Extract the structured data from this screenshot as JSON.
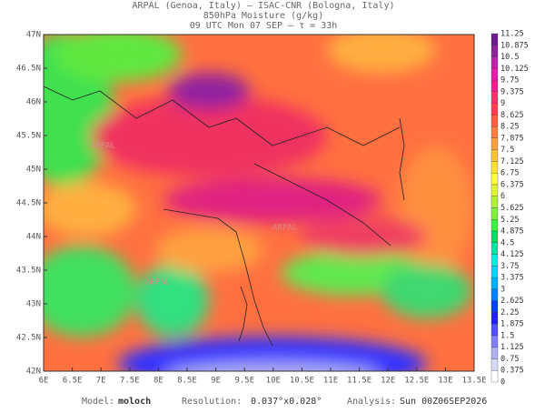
{
  "header": {
    "line1": "ARPAL (Genoa, Italy)  —  ISAC-CNR (Bologna, Italy)",
    "line2": "850hPa Moisture (g/kg)",
    "line3": "09 UTC Mon 07 SEP  —  τ = 33h"
  },
  "map": {
    "lat_labels": [
      "47N",
      "46.5N",
      "46N",
      "45.5N",
      "45N",
      "44.5N",
      "44N",
      "43.5N",
      "43N",
      "42.5N",
      "42N"
    ],
    "lon_labels": [
      "6E",
      "6.5E",
      "7E",
      "7.5E",
      "8E",
      "8.5E",
      "9E",
      "9.5E",
      "10E",
      "10.5E",
      "11E",
      "11.5E",
      "12E",
      "12.5E",
      "13E",
      "13.5E"
    ],
    "watermark": "ARPAL"
  },
  "colorbar": {
    "ticks": [
      11.25,
      10.875,
      10.5,
      10.125,
      9.75,
      9.375,
      9,
      8.625,
      8.25,
      7.875,
      7.5,
      7.125,
      6.75,
      6.375,
      6,
      5.625,
      5.25,
      4.875,
      4.5,
      4.125,
      3.75,
      3.375,
      3,
      2.625,
      2.25,
      1.875,
      1.5,
      1.125,
      0.75,
      0.375,
      0
    ],
    "colors": [
      "#701890",
      "#9020a0",
      "#c020b0",
      "#e020b0",
      "#f02090",
      "#ff3070",
      "#ff4050",
      "#ff6040",
      "#ff8040",
      "#ffa040",
      "#ffc040",
      "#ffe040",
      "#ffff40",
      "#e0f040",
      "#b0f040",
      "#80f040",
      "#40f040",
      "#00e060",
      "#00e8a0",
      "#00f0e0",
      "#00d8ff",
      "#00b0ff",
      "#0080ff",
      "#0040ff",
      "#2020ff",
      "#5050ff",
      "#8080ff",
      "#b0b0f0",
      "#d8d8f8",
      "#ffffff"
    ]
  },
  "footer": {
    "model_label": "Model:",
    "model": "moloch",
    "resolution_label": "Resolution:",
    "resolution": "0.037°x0.028°",
    "analysis_label": "Analysis:",
    "analysis": "Sun 00Z06SEP2026"
  }
}
